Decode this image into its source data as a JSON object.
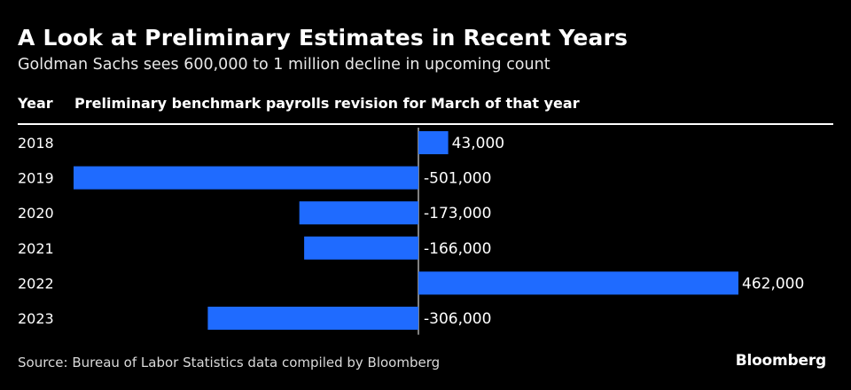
{
  "header": {
    "title": "A Look at Preliminary Estimates in Recent Years",
    "subtitle": "Goldman Sachs sees 600,000 to 1 million decline in upcoming count",
    "col_year": "Year",
    "col_metric": "Preliminary benchmark payrolls revision for March of that year"
  },
  "chart_data": {
    "type": "bar",
    "orientation": "horizontal",
    "categories": [
      "2018",
      "2019",
      "2020",
      "2021",
      "2022",
      "2023"
    ],
    "values": [
      43000,
      -501000,
      -173000,
      -166000,
      462000,
      -306000
    ],
    "value_labels": [
      "43,000",
      "-501,000",
      "-173,000",
      "-166,000",
      "462,000",
      "-306,000"
    ],
    "xlim": [
      -501000,
      462000
    ],
    "bar_color": "#1f6bff",
    "grid": false
  },
  "footer": {
    "source": "Source: Bureau of Labor Statistics data compiled by Bloomberg",
    "brand": "Bloomberg"
  }
}
